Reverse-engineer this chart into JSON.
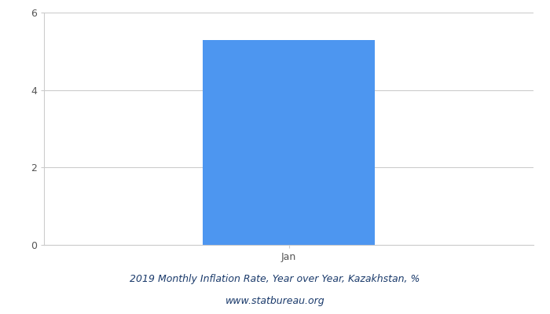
{
  "categories": [
    "Jan"
  ],
  "values": [
    5.3
  ],
  "bar_color": "#4d96f0",
  "title_line1": "2019 Monthly Inflation Rate, Year over Year, Kazakhstan, %",
  "title_line2": "www.statbureau.org",
  "title_color": "#1a3a6b",
  "ylim": [
    0,
    6
  ],
  "yticks": [
    0,
    2,
    4,
    6
  ],
  "background_color": "#ffffff",
  "grid_color": "#cccccc",
  "bar_width": 0.35,
  "tick_color": "#555555",
  "tick_fontsize": 9,
  "title_fontsize": 9,
  "subtitle_fontsize": 9,
  "xlim": [
    -0.5,
    0.5
  ]
}
